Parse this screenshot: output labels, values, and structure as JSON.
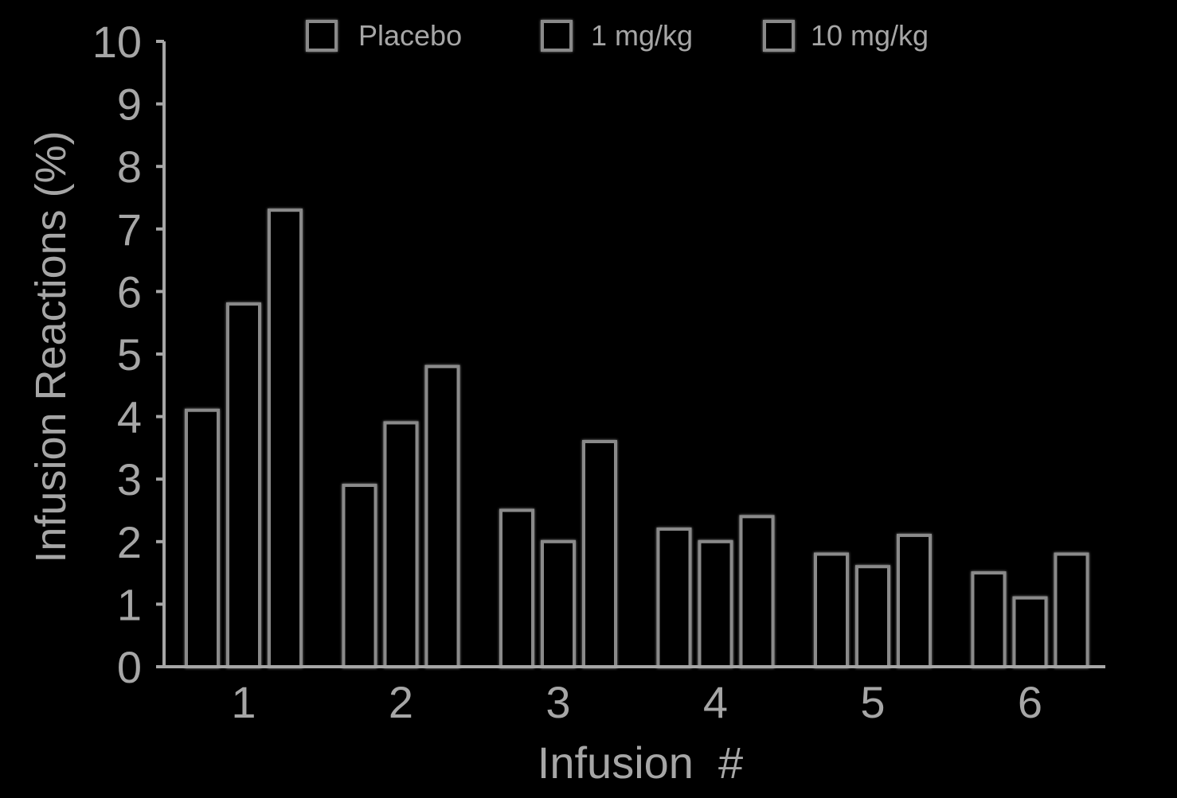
{
  "chart_data": {
    "type": "bar",
    "xlabel": "Infusion  #",
    "ylabel": "Infusion Reactions (%)",
    "categories": [
      "1",
      "2",
      "3",
      "4",
      "5",
      "6"
    ],
    "ylim": [
      0,
      10
    ],
    "yticks": [
      "0",
      "1",
      "2",
      "3",
      "4",
      "5",
      "6",
      "7",
      "8",
      "9",
      "10"
    ],
    "grid": false,
    "legend_position": "top",
    "series": [
      {
        "name": "Placebo",
        "values": [
          4.1,
          2.9,
          2.5,
          2.2,
          1.8,
          1.5
        ]
      },
      {
        "name": "1 mg/kg",
        "values": [
          5.8,
          3.9,
          2.0,
          2.0,
          1.6,
          1.1
        ]
      },
      {
        "name": "10 mg/kg",
        "values": [
          7.3,
          4.8,
          3.6,
          2.4,
          2.1,
          1.8
        ]
      }
    ],
    "colors": {
      "background": "#000000",
      "bar_fill": "#000000",
      "bar_stroke": "#8a8a8a",
      "text": "#a6a6a6"
    }
  }
}
